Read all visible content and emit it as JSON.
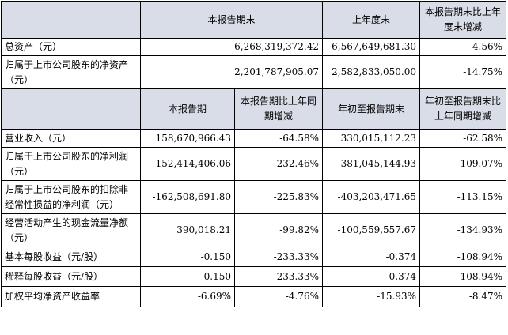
{
  "table1": {
    "headers": [
      "",
      "本报告期末",
      "上年度末",
      "本报告期末比上年度末增减"
    ],
    "rows": [
      {
        "label": "总资产（元）",
        "values": [
          "6,268,319,372.42",
          "6,567,649,681.30",
          "-4.56%"
        ]
      },
      {
        "label": "归属于上市公司股东的净资产（元）",
        "values": [
          "2,201,787,905.07",
          "2,582,833,050.00",
          "-14.75%"
        ]
      }
    ]
  },
  "table2": {
    "headers": [
      "",
      "本报告期",
      "本报告期比上年同期增减",
      "年初至报告期末",
      "年初至报告期末比上年同期增减"
    ],
    "rows": [
      {
        "label": "营业收入（元）",
        "values": [
          "158,670,966.43",
          "-64.58%",
          "330,015,112.23",
          "-62.58%"
        ]
      },
      {
        "label": "归属于上市公司股东的净利润（元）",
        "values": [
          "-152,414,406.06",
          "-232.46%",
          "-381,045,144.93",
          "-109.07%"
        ]
      },
      {
        "label": "归属于上市公司股东的扣除非经常性损益的净利润（元）",
        "values": [
          "-162,508,691.80",
          "-225.83%",
          "-403,203,471.65",
          "-113.15%"
        ]
      },
      {
        "label": "经营活动产生的现金流量净额（元）",
        "values": [
          "390,018.21",
          "-99.82%",
          "-100,559,557.67",
          "-134.93%"
        ]
      },
      {
        "label": "基本每股收益（元/股）",
        "values": [
          "-0.150",
          "-233.33%",
          "-0.374",
          "-108.94%"
        ]
      },
      {
        "label": "稀释每股收益（元/股）",
        "values": [
          "-0.150",
          "-233.33%",
          "-0.374",
          "-108.94%"
        ]
      },
      {
        "label": "加权平均净资产收益率",
        "values": [
          "-6.69%",
          "-4.76%",
          "-15.93%",
          "-8.47%"
        ]
      }
    ]
  }
}
